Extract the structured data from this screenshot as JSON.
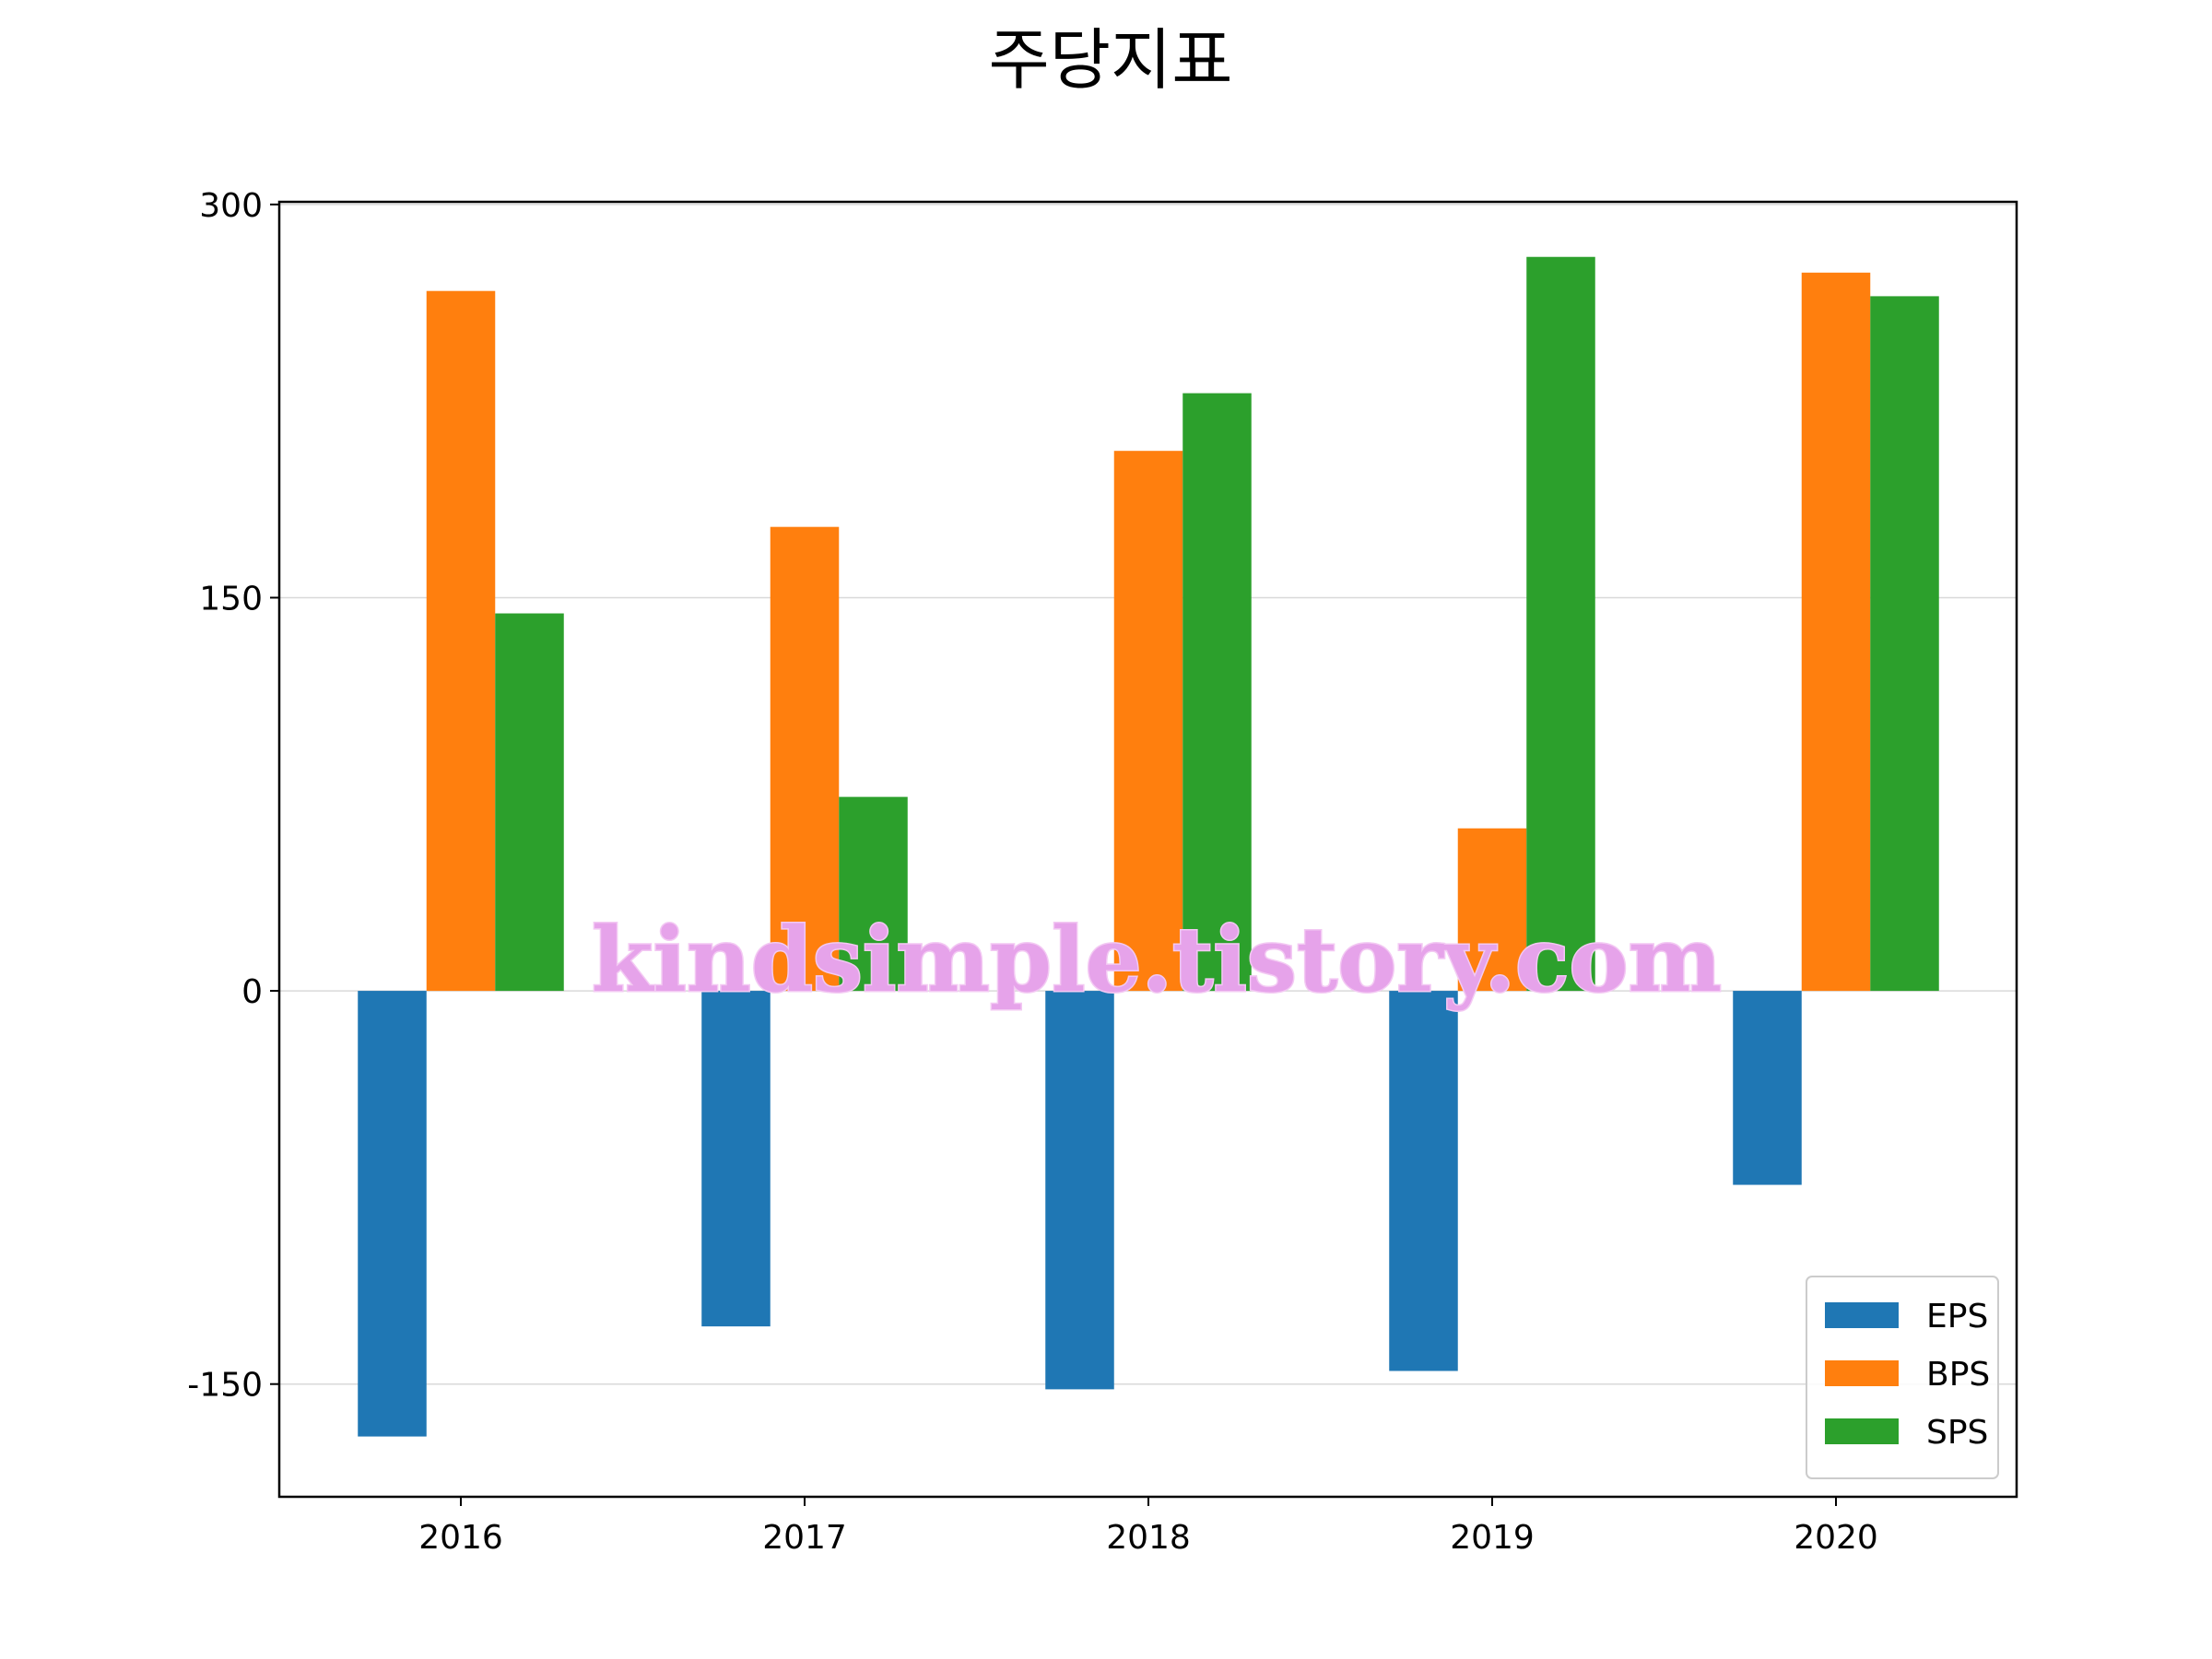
{
  "chart_data": {
    "type": "bar",
    "title": "주당지표",
    "xlabel": "",
    "ylabel": "",
    "categories": [
      "2016",
      "2017",
      "2018",
      "2019",
      "2020"
    ],
    "series": [
      {
        "name": "EPS",
        "color": "#1f77b4",
        "values": [
          -170,
          -128,
          -152,
          -145,
          -74
        ]
      },
      {
        "name": "BPS",
        "color": "#ff7f0e",
        "values": [
          267,
          177,
          206,
          62,
          274
        ]
      },
      {
        "name": "SPS",
        "color": "#2ca02c",
        "values": [
          144,
          74,
          228,
          280,
          265
        ]
      }
    ],
    "ylim": [
      -193,
      301
    ],
    "yticks": [
      300,
      150,
      0,
      -150
    ],
    "ytick_labels": [
      "300",
      "150",
      "0",
      "-150"
    ],
    "grid": "horizontal",
    "legend_position": "lower right"
  },
  "watermark": "kindsimple.tistory.com"
}
